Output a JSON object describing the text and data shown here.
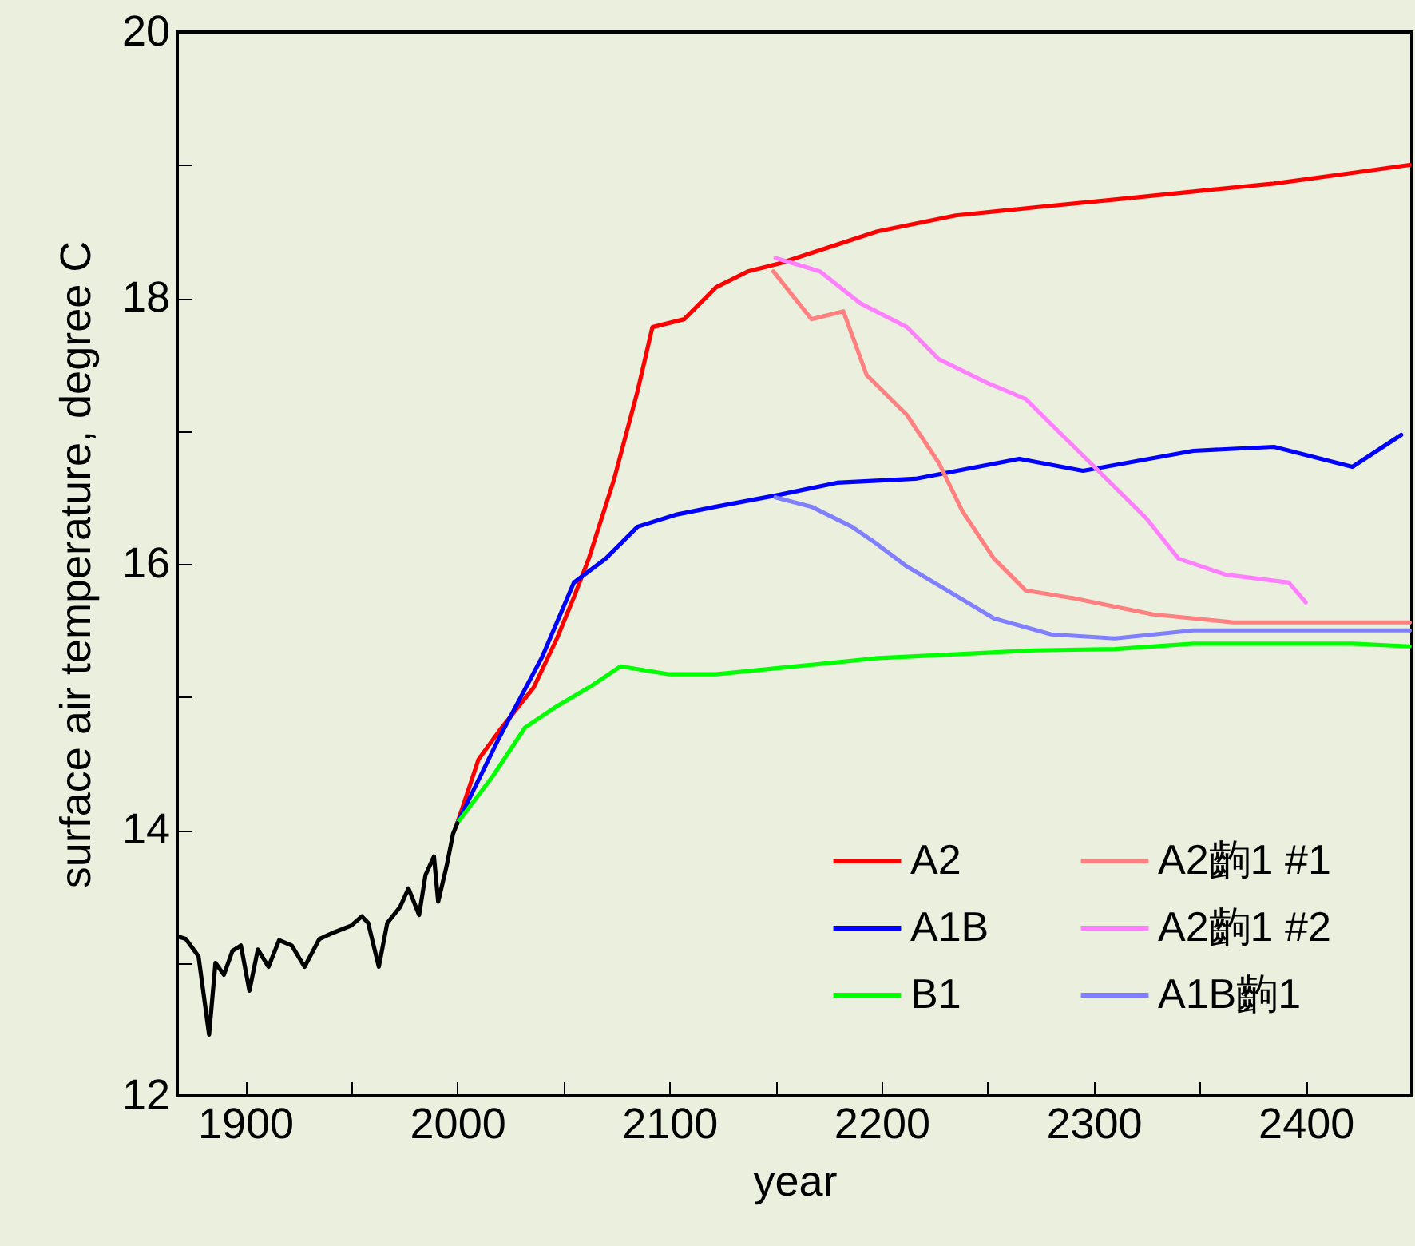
{
  "chart_data": {
    "type": "line",
    "xlabel": "year",
    "ylabel": "surface air temperature, degree C",
    "xlim": [
      1868,
      2450
    ],
    "ylim": [
      12,
      20
    ],
    "xticks": [
      1900,
      {
        "value": 1950,
        "label": null
      },
      2000,
      {
        "value": 2050,
        "label": null
      },
      2100,
      {
        "value": 2150,
        "label": null
      },
      2200,
      {
        "value": 2250,
        "label": null
      },
      2300,
      {
        "value": 2350,
        "label": null
      },
      2400,
      {
        "value": 2450,
        "label": null
      }
    ],
    "yticks": [
      12,
      {
        "value": 13,
        "label": null
      },
      14,
      {
        "value": 15,
        "label": null
      },
      16,
      {
        "value": 17,
        "label": null
      },
      18,
      {
        "value": 19,
        "label": null
      },
      20
    ],
    "grid": false,
    "legend": "bottom right",
    "marker": "none",
    "line_style": "solid",
    "series": [
      {
        "name": "A2",
        "color": "#ff0000",
        "x": [
          2000,
          2010,
          2021,
          2036,
          2047,
          2055,
          2062,
          2074,
          2085,
          2092,
          2107,
          2122,
          2137,
          2152,
          2175,
          2198,
          2235,
          2272,
          2310,
          2347,
          2385,
          2422,
          2449
        ],
        "values": [
          14.05,
          14.53,
          14.77,
          15.07,
          15.44,
          15.75,
          16.04,
          16.64,
          17.3,
          17.78,
          17.84,
          18.08,
          18.2,
          18.26,
          18.38,
          18.5,
          18.62,
          18.68,
          18.74,
          18.8,
          18.86,
          18.94,
          19.0
        ]
      },
      {
        "name": "A1B",
        "color": "#0000ff",
        "x": [
          2000,
          2020,
          2040,
          2055,
          2070,
          2085,
          2103,
          2122,
          2152,
          2179,
          2216,
          2265,
          2295,
          2347,
          2385,
          2422,
          2445
        ],
        "values": [
          14.05,
          14.7,
          15.3,
          15.86,
          16.04,
          16.28,
          16.37,
          16.43,
          16.52,
          16.61,
          16.64,
          16.79,
          16.7,
          16.85,
          16.88,
          16.73,
          16.97
        ]
      },
      {
        "name": "B1",
        "color": "#00ff00",
        "x": [
          2000,
          2017,
          2032,
          2047,
          2062,
          2077,
          2100,
          2122,
          2160,
          2197,
          2235,
          2272,
          2310,
          2347,
          2385,
          2422,
          2449
        ],
        "values": [
          14.05,
          14.41,
          14.77,
          14.93,
          15.07,
          15.23,
          15.17,
          15.17,
          15.23,
          15.29,
          15.32,
          15.35,
          15.36,
          15.4,
          15.4,
          15.4,
          15.38
        ]
      },
      {
        "name": "A2齣1 #1",
        "color": "#ff8080",
        "x": [
          2149,
          2167,
          2182,
          2193,
          2212,
          2227,
          2238,
          2253,
          2268,
          2291,
          2328,
          2366,
          2403,
          2449
        ],
        "values": [
          18.2,
          17.84,
          17.9,
          17.42,
          17.12,
          16.76,
          16.4,
          16.04,
          15.8,
          15.74,
          15.62,
          15.56,
          15.56,
          15.56
        ]
      },
      {
        "name": "A2齣1 #2",
        "color": "#ff80ff",
        "x": [
          2150,
          2171,
          2190,
          2212,
          2227,
          2250,
          2268,
          2287,
          2306,
          2325,
          2340,
          2362,
          2392,
          2400
        ],
        "values": [
          18.3,
          18.2,
          17.96,
          17.78,
          17.54,
          17.36,
          17.24,
          16.94,
          16.64,
          16.34,
          16.04,
          15.92,
          15.86,
          15.71
        ]
      },
      {
        "name": "A1B齣1",
        "color": "#8080ff",
        "x": [
          2150,
          2167,
          2186,
          2197,
          2212,
          2231,
          2253,
          2280,
          2310,
          2347,
          2385,
          2422,
          2449
        ],
        "values": [
          16.5,
          16.43,
          16.28,
          16.16,
          15.98,
          15.8,
          15.59,
          15.47,
          15.44,
          15.5,
          15.5,
          15.5,
          15.5
        ]
      },
      {
        "color": "#000000",
        "x": [
          1868,
          1872,
          1878,
          1883,
          1886,
          1890,
          1894,
          1898,
          1902,
          1906,
          1911,
          1916,
          1922,
          1928,
          1935,
          1942,
          1950,
          1955,
          1958,
          1963,
          1967,
          1973,
          1977,
          1982,
          1985,
          1989,
          1991,
          1995,
          1998,
          2000
        ],
        "values": [
          13.2,
          13.18,
          13.05,
          12.46,
          13.0,
          12.91,
          13.09,
          13.13,
          12.79,
          13.1,
          12.97,
          13.17,
          13.13,
          12.97,
          13.18,
          13.23,
          13.28,
          13.35,
          13.3,
          12.97,
          13.3,
          13.42,
          13.56,
          13.36,
          13.66,
          13.8,
          13.46,
          13.73,
          13.97,
          14.05
        ]
      }
    ]
  }
}
